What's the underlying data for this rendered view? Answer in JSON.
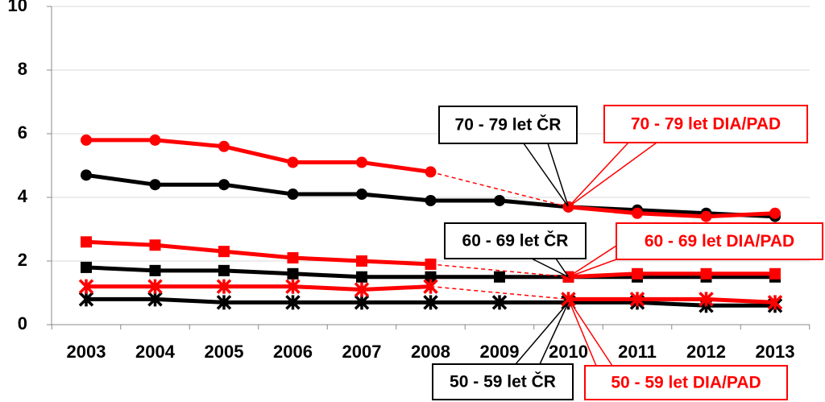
{
  "chart_data": {
    "type": "line",
    "categories": [
      "2003",
      "2004",
      "2005",
      "2006",
      "2007",
      "2008",
      "2009",
      "2010",
      "2011",
      "2012",
      "2013"
    ],
    "ylim": [
      0,
      10
    ],
    "yticks": [
      0,
      2,
      4,
      6,
      8,
      10
    ],
    "grid": true,
    "series": [
      {
        "name": "70 - 79 let ČR",
        "color": "#000000",
        "marker": "circle",
        "values": [
          4.7,
          4.4,
          4.4,
          4.1,
          4.1,
          3.9,
          3.9,
          3.7,
          3.6,
          3.5,
          3.4
        ]
      },
      {
        "name": "70 - 79 let DIA/PAD",
        "color": "#ff0000",
        "marker": "circle",
        "values": [
          5.8,
          5.8,
          5.6,
          5.1,
          5.1,
          4.8,
          null,
          3.7,
          3.5,
          3.4,
          3.5
        ]
      },
      {
        "name": "60 - 69 let ČR",
        "color": "#000000",
        "marker": "square",
        "values": [
          1.8,
          1.7,
          1.7,
          1.6,
          1.5,
          1.5,
          1.5,
          1.5,
          1.5,
          1.5,
          1.5
        ]
      },
      {
        "name": "60 - 69 let DIA/PAD",
        "color": "#ff0000",
        "marker": "square",
        "values": [
          2.6,
          2.5,
          2.3,
          2.1,
          2.0,
          1.9,
          null,
          1.5,
          1.6,
          1.6,
          1.6
        ]
      },
      {
        "name": "50 - 59 let ČR",
        "color": "#000000",
        "marker": "star",
        "values": [
          0.8,
          0.8,
          0.7,
          0.7,
          0.7,
          0.7,
          0.7,
          0.7,
          0.7,
          0.6,
          0.6
        ]
      },
      {
        "name": "50 - 59 let DIA/PAD",
        "color": "#ff0000",
        "marker": "star",
        "values": [
          1.2,
          1.2,
          1.2,
          1.2,
          1.1,
          1.2,
          null,
          0.8,
          0.8,
          0.8,
          0.7
        ]
      }
    ]
  }
}
